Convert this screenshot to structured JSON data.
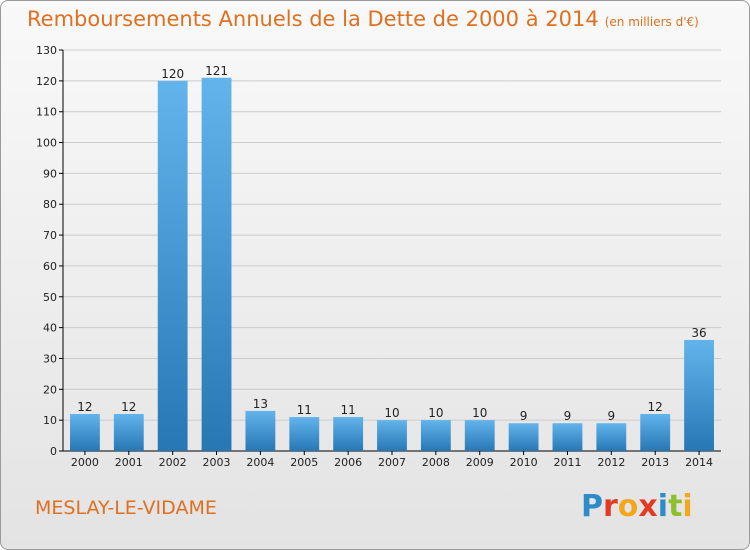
{
  "header": {
    "title": "Remboursements Annuels de la Dette de 2000 à 2014",
    "subtitle": "(en milliers d'€)"
  },
  "footer": {
    "commune": "MESLAY-LE-VIDAME",
    "logo_letters": [
      "P",
      "r",
      "o",
      "x",
      "i",
      "t",
      "i"
    ],
    "logo_colors": [
      "#2d8cc8",
      "#e23b25",
      "#f3a81c",
      "#e23b25",
      "#2d8cc8",
      "#8fbf2e",
      "#f3a81c"
    ]
  },
  "colors": {
    "title": "#e0701f",
    "bar_top": "#63b3ec",
    "bar_bottom": "#2777b5",
    "axis": "#000000",
    "grid": "#cccccc"
  },
  "chart_data": {
    "type": "bar",
    "title": "Remboursements Annuels de la Dette de 2000 à 2014",
    "subtitle": "(en milliers d'€)",
    "categories": [
      "2000",
      "2001",
      "2002",
      "2003",
      "2004",
      "2005",
      "2006",
      "2007",
      "2008",
      "2009",
      "2010",
      "2011",
      "2012",
      "2013",
      "2014"
    ],
    "values": [
      12,
      12,
      120,
      121,
      13,
      11,
      11,
      10,
      10,
      10,
      9,
      9,
      9,
      12,
      36
    ],
    "ylim": [
      0,
      130
    ],
    "yticks": [
      0,
      10,
      20,
      30,
      40,
      50,
      60,
      70,
      80,
      90,
      100,
      110,
      120,
      130
    ],
    "xlabel": "",
    "ylabel": "",
    "grid": true,
    "data_labels": true
  }
}
